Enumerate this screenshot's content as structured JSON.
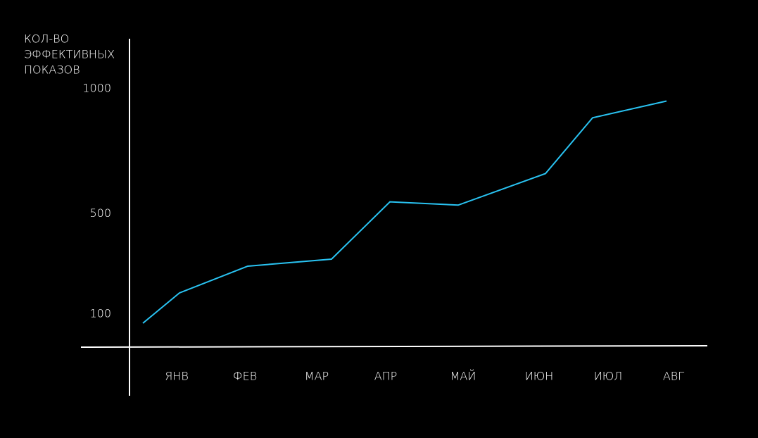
{
  "chart_data": {
    "type": "line",
    "y_label": [
      "КОЛ-ВО",
      "ЭФФЕКТИВНЫХ",
      "ПОКАЗОВ"
    ],
    "categories": [
      null,
      "ЯНВ",
      "ФЕВ",
      "МАР",
      "АПР",
      "МАЙ",
      "ИЮН",
      "ИЮЛ",
      "АВГ"
    ],
    "values": [
      63,
      184,
      291,
      319,
      548,
      535,
      661,
      884,
      951
    ],
    "color": "#29c3f2",
    "ylim": [
      -30,
      1200
    ],
    "yticks": [
      100,
      500,
      1000
    ],
    "grid": false
  }
}
